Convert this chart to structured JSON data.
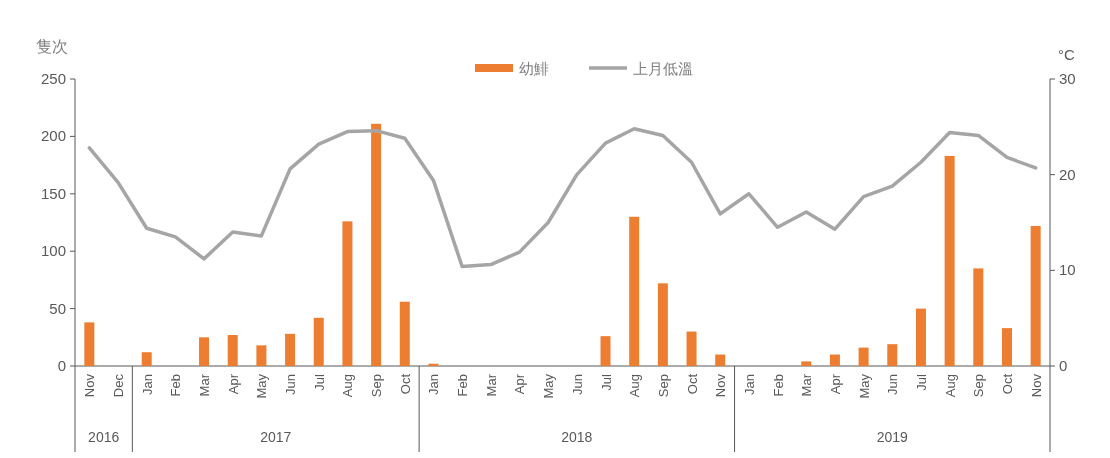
{
  "chart_data": {
    "type": "bar",
    "ylabel": "隻次",
    "y2label": "°C",
    "categories": [
      "Nov",
      "Dec",
      "Jan",
      "Feb",
      "Mar",
      "Apr",
      "May",
      "Jun",
      "Jul",
      "Aug",
      "Sep",
      "Oct",
      "Jan",
      "Feb",
      "Mar",
      "Apr",
      "May",
      "Jun",
      "Jul",
      "Aug",
      "Sep",
      "Oct",
      "Nov",
      "Jan",
      "Feb",
      "Mar",
      "Apr",
      "May",
      "Jun",
      "Jul",
      "Aug",
      "Sep",
      "Oct",
      "Nov"
    ],
    "series": [
      {
        "name": "幼鯡",
        "color": "#ed7d31",
        "values": [
          38,
          0,
          12,
          0,
          25,
          27,
          18,
          28,
          42,
          126,
          211,
          56,
          2,
          0,
          0,
          0,
          0,
          0,
          26,
          130,
          72,
          30,
          10,
          0,
          0,
          4,
          10,
          16,
          19,
          50,
          183,
          85,
          33,
          122
        ]
      },
      {
        "name": "上月低溫",
        "type": "line",
        "axis": "y2",
        "color": "#a5a5a5",
        "values": [
          22.8,
          19.2,
          14.4,
          13.5,
          11.2,
          14.0,
          13.6,
          20.6,
          23.2,
          24.5,
          24.6,
          23.8,
          19.4,
          10.4,
          10.6,
          11.9,
          15.0,
          20.0,
          23.3,
          24.8,
          24.1,
          21.3,
          15.9,
          18.0,
          14.5,
          16.1,
          14.3,
          17.7,
          18.8,
          21.3,
          24.4,
          24.1,
          21.8,
          20.7
        ]
      }
    ],
    "ylim": [
      0,
      250
    ],
    "yticks": [
      0,
      50,
      100,
      150,
      200,
      250
    ],
    "y2lim": [
      0,
      30
    ],
    "y2ticks": [
      0,
      10,
      20,
      30
    ],
    "grid": false,
    "legend": "top",
    "annotations": [
      "2016",
      "2017",
      "2018",
      "2019"
    ]
  }
}
